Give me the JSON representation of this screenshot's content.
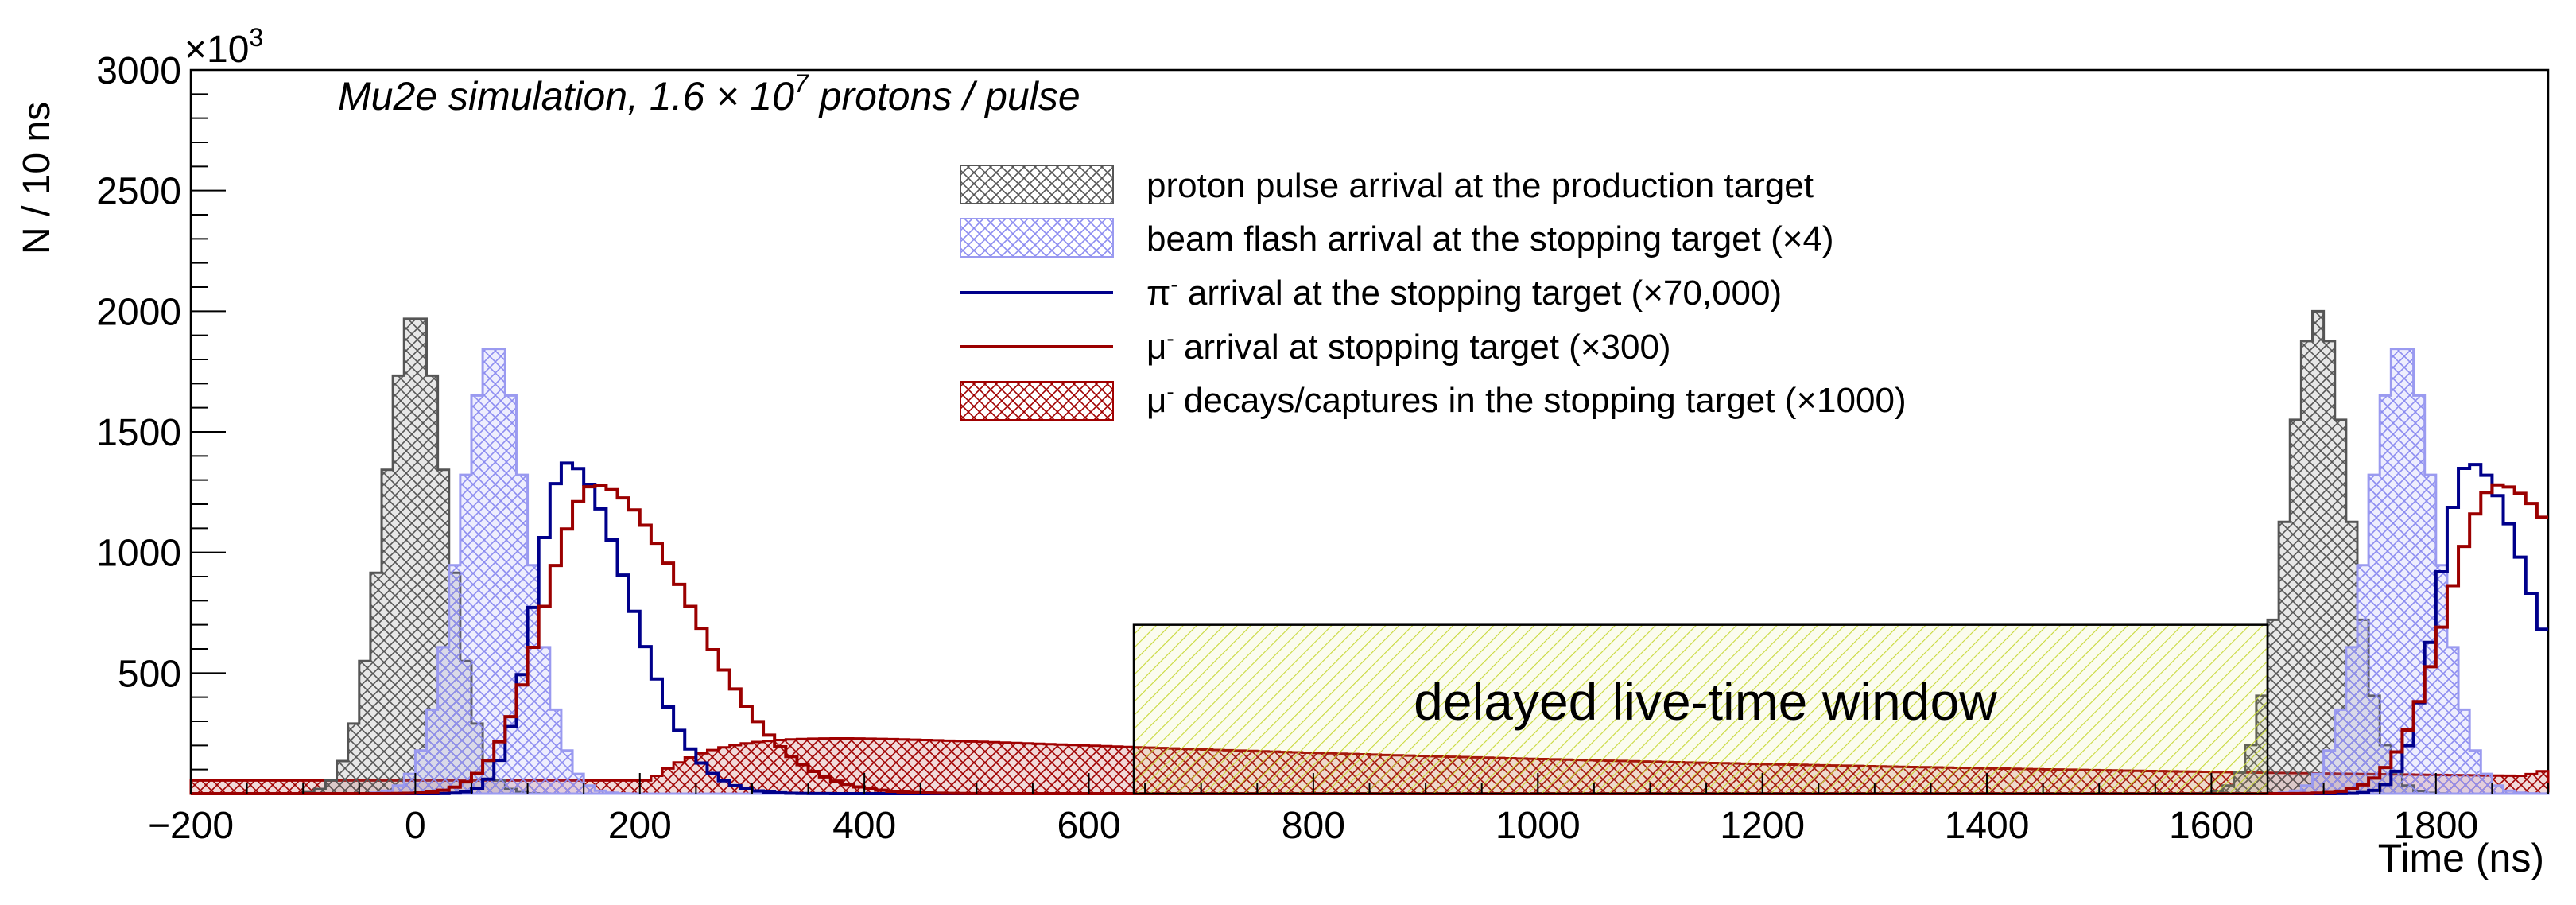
{
  "chart_data": {
    "type": "histogram",
    "title": "Mu2e simulation, 1.6 × 10⁷ protons / pulse",
    "title_parts": {
      "pre": "Mu2e simulation, 1.6 × 10",
      "exp": "7",
      "post": " protons / pulse"
    },
    "xlabel": "Time (ns)",
    "ylabel": "N / 10 ns",
    "y_multiplier": {
      "base": "×10",
      "exp": "3"
    },
    "xlim": [
      -200,
      1900
    ],
    "ylim": [
      0,
      3000
    ],
    "bin_width_ns": 10,
    "x_ticks": [
      -200,
      0,
      200,
      400,
      600,
      800,
      1000,
      1200,
      1400,
      1600,
      1800
    ],
    "y_ticks": [
      500,
      1000,
      1500,
      2000,
      2500,
      3000
    ],
    "y_tick_labels": [
      "500",
      "1000",
      "1500",
      "2000",
      "2500",
      "3000"
    ],
    "x_tick_labels": [
      "−200",
      "0",
      "200",
      "400",
      "600",
      "800",
      "1000",
      "1200",
      "1400",
      "1600",
      "1800"
    ],
    "series": [
      {
        "key": "proton",
        "name": "proton pulse arrival at the production target",
        "style": "hatch-cross",
        "line_color": "#555555",
        "fill_color": "#6e6e6e",
        "shape": "gaussian",
        "peaks": [
          0,
          1695
        ],
        "sigma": 28,
        "amplitude": 2000
      },
      {
        "key": "flash",
        "name": "beam flash arrival at the stopping target (×4)",
        "style": "hatch-cross",
        "line_color": "#9a9af0",
        "fill_color": "#8080ee",
        "shape": "gaussian",
        "peaks": [
          70,
          1770
        ],
        "sigma": 30,
        "amplitude": 1870
      },
      {
        "key": "pion",
        "name": "π⁻ arrival at the stopping target (×70,000)",
        "style": "line",
        "line_color": "#00008b",
        "shape": "skewed",
        "peaks": [
          135,
          1830
        ],
        "rise": 28,
        "fall": 55,
        "amplitude": 1370
      },
      {
        "key": "muon",
        "name": "μ⁻ arrival at stopping target (×300)",
        "style": "line",
        "line_color": "#9b0000",
        "shape": "skewed",
        "peaks": [
          160,
          1855
        ],
        "rise": 45,
        "fall": 85,
        "amplitude": 1280
      },
      {
        "key": "decay",
        "name": "μ⁻ decays/captures in the stopping target (×1000)",
        "style": "hatch-cross",
        "line_color": "#a00000",
        "fill_color": "#a00000",
        "shape": "rise-decay",
        "rise_start": 200,
        "peak": 340,
        "amplitude": 280,
        "baseline": 55
      }
    ],
    "legend": [
      {
        "key": "proton",
        "label": "proton pulse arrival at the production target"
      },
      {
        "key": "flash",
        "label": "beam flash arrival at the stopping target (×4)"
      },
      {
        "key": "pion",
        "label_sym": "π",
        "label_sup": "-",
        "label_rest": " arrival at the stopping target (×70,000)"
      },
      {
        "key": "muon",
        "label_sym": "μ",
        "label_sup": "-",
        "label_rest": " arrival at stopping target (×300)"
      },
      {
        "key": "decay",
        "label_sym": "μ",
        "label_sup": "-",
        "label_rest": " decays/captures in the stopping target (×1000)"
      }
    ],
    "legend_position": "top-center",
    "annotations": [
      {
        "type": "box",
        "label": "delayed live-time window",
        "x_range": [
          640,
          1650
        ],
        "y_top": 700,
        "fill": "#d4e157",
        "hatch": "diagonal"
      }
    ]
  }
}
